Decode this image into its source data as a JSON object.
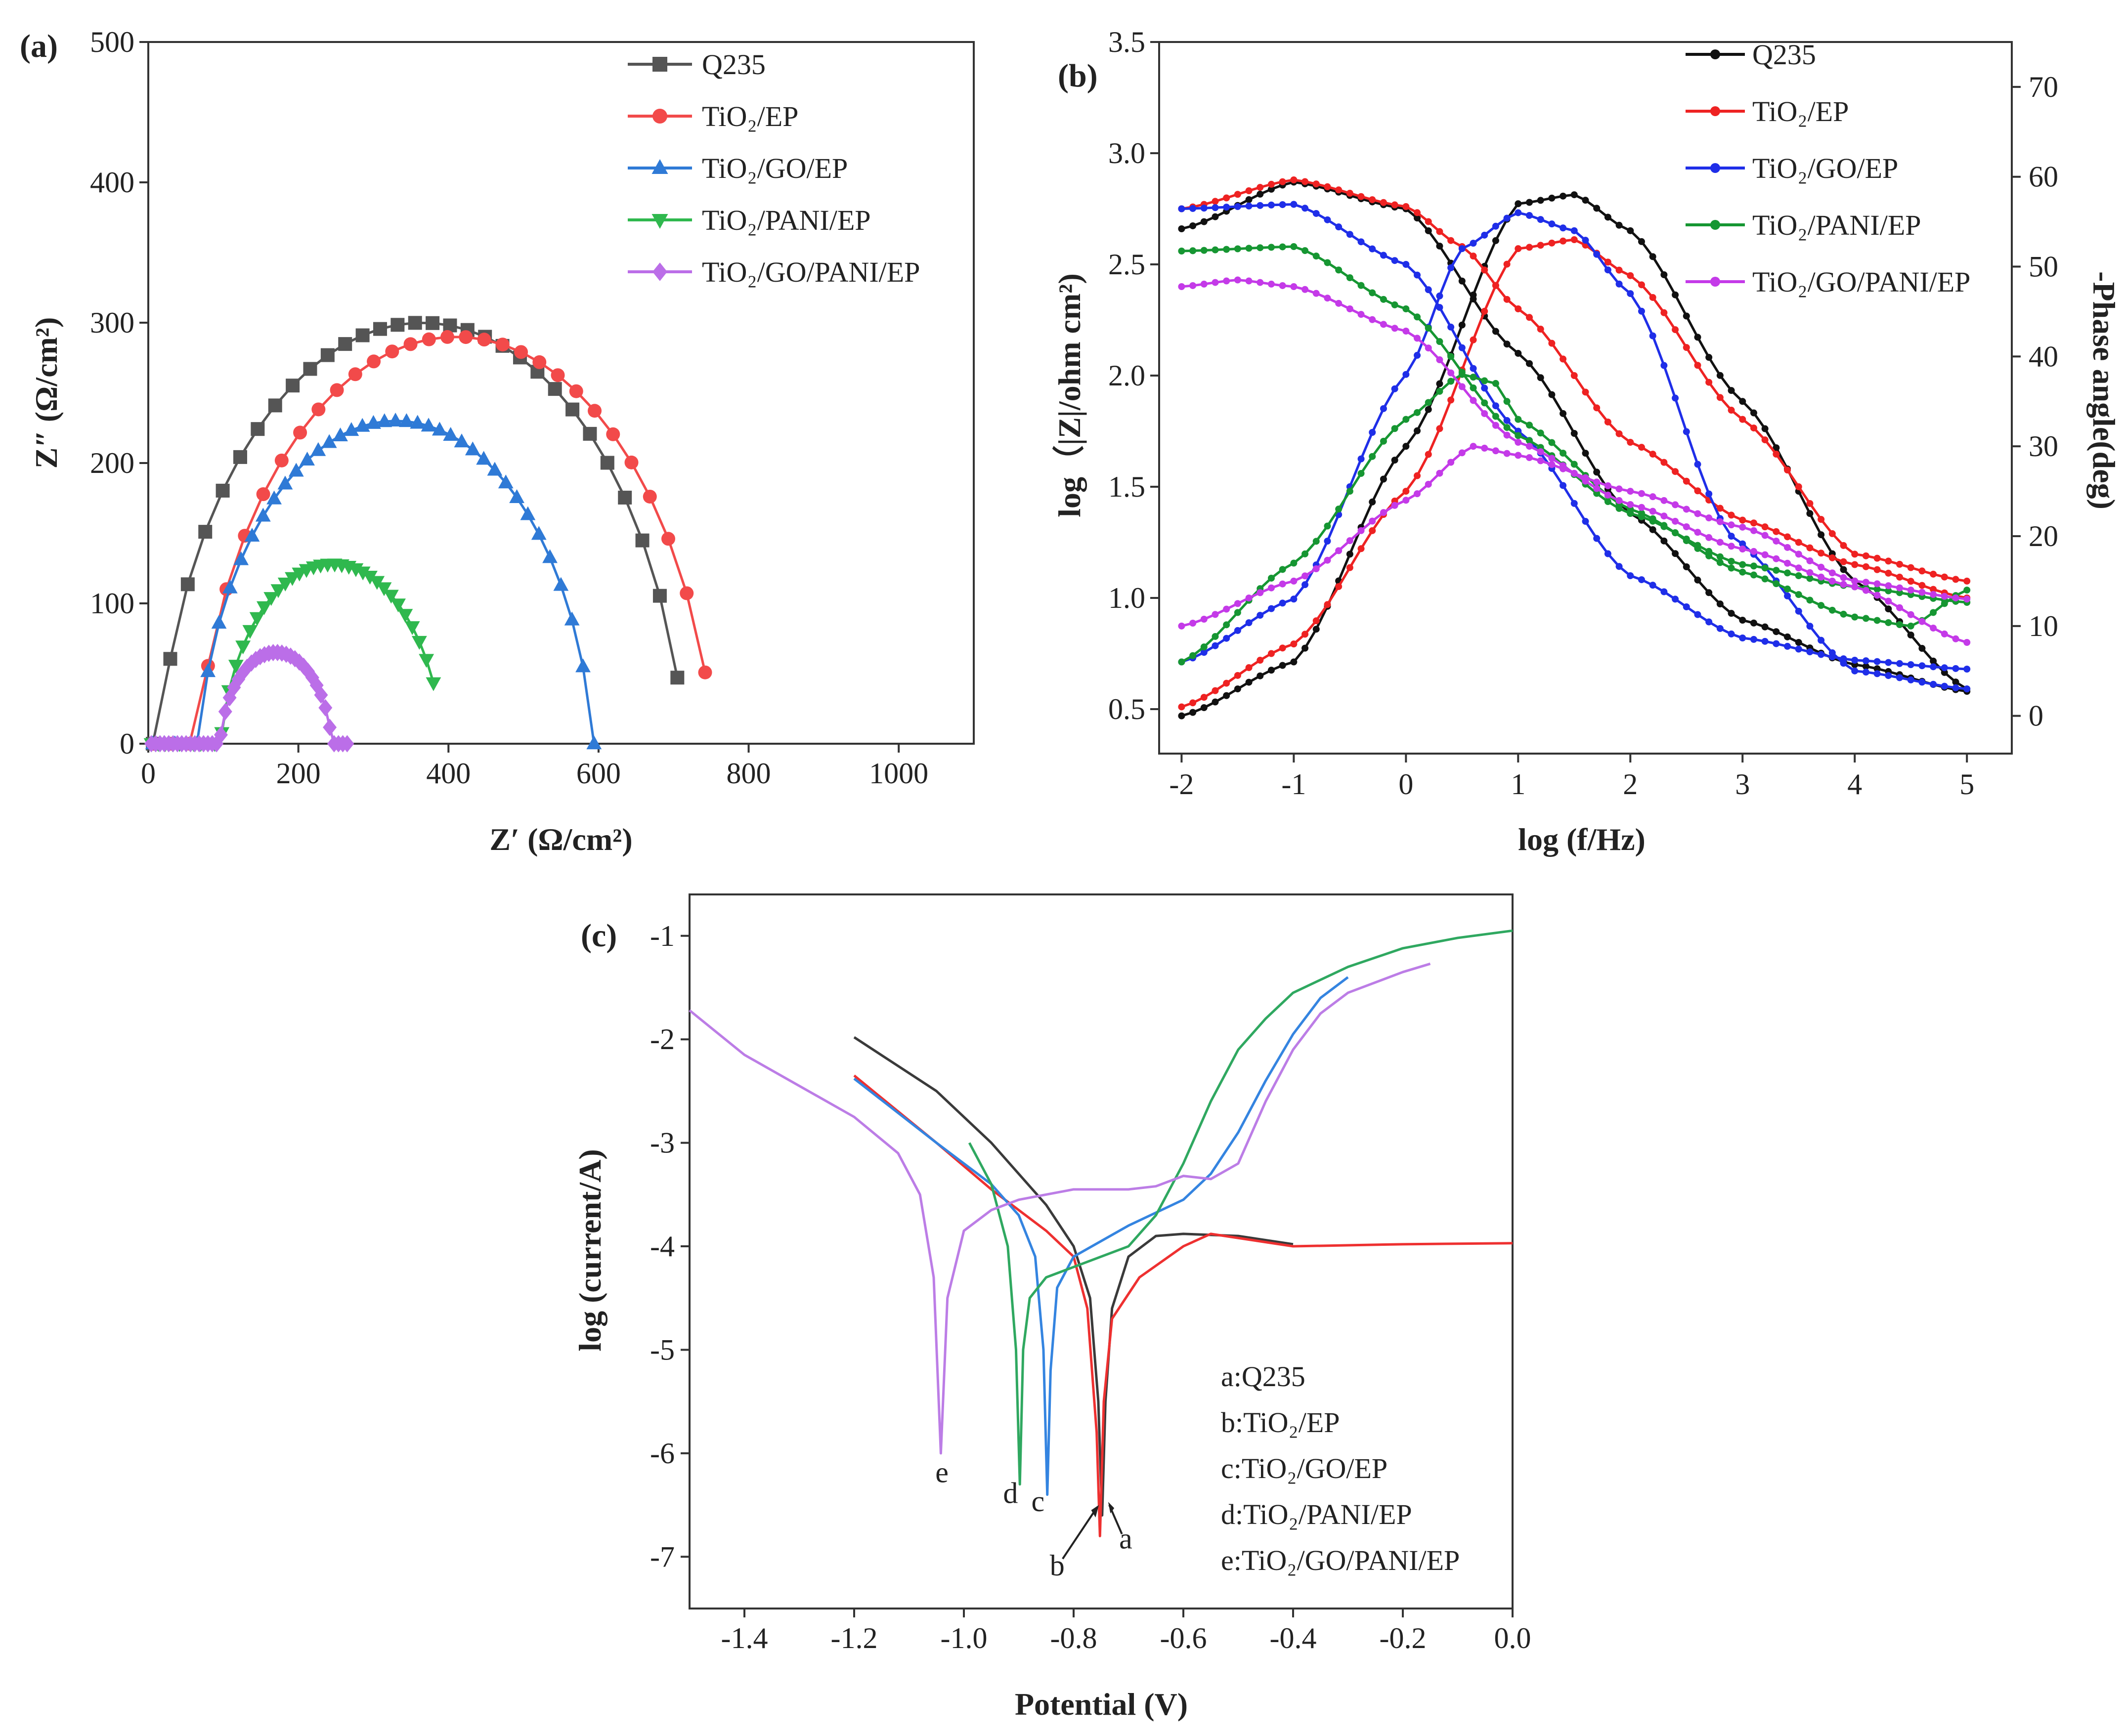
{
  "chart_data": [
    {
      "panel": "(a)",
      "type": "scatter",
      "xlabel": "Z′  (Ω/cm²)",
      "ylabel": "Z″  (Ω/cm²)",
      "xlim": [
        0,
        1100
      ],
      "ylim": [
        0,
        500
      ],
      "xticks": [
        0,
        200,
        400,
        600,
        800,
        1000
      ],
      "yticks": [
        0,
        100,
        200,
        300,
        400,
        500
      ],
      "legend_position": "top-right",
      "series": [
        {
          "name": "Q235",
          "color": "#555555",
          "marker": "square",
          "center": 365,
          "radius": 355,
          "offset": 55,
          "start": 6,
          "end": 705,
          "n": 30
        },
        {
          "name": "TiO₂/EP",
          "color": "#f24a4a",
          "marker": "circle",
          "center": 410,
          "radius": 350,
          "offset": 60,
          "start": 6,
          "end": 742,
          "n": 30
        },
        {
          "name": "TiO₂/GO/EP",
          "color": "#2f7ad6",
          "marker": "triangle-up",
          "center": 330,
          "radius": 265,
          "offset": 35,
          "start": 6,
          "end": 594,
          "n": 40
        },
        {
          "name": "TiO₂/PANI/EP",
          "color": "#2fb84e",
          "marker": "triangle-down",
          "center": 245,
          "radius": 150,
          "offset": 22,
          "start": 4,
          "end": 380,
          "n": 40
        },
        {
          "name": "TiO₂/GO/PANI/EP",
          "color": "#bb6ee8",
          "marker": "diamond",
          "center": 170,
          "radius": 75,
          "offset": 10,
          "start": 4,
          "end": 265,
          "n": 45
        }
      ]
    },
    {
      "panel": "(b)",
      "type": "line",
      "xlabel": "log (f/Hz)",
      "ylabel": "log（|Z|/ohm cm²)",
      "y2label": "-Phase angle(deg)",
      "xlim": [
        -2.2,
        5.4
      ],
      "ylim": [
        0.3,
        3.5
      ],
      "y2lim": [
        -4.2,
        75
      ],
      "xticks": [
        -2,
        -1,
        0,
        1,
        2,
        3,
        4,
        5
      ],
      "yticks": [
        0.5,
        1.0,
        1.5,
        2.0,
        2.5,
        3.0,
        3.5
      ],
      "y2ticks": [
        0,
        10,
        20,
        30,
        40,
        50,
        60,
        70
      ],
      "legend_position": "top-right",
      "series": [
        {
          "name": "Q235",
          "color": "#111111",
          "modulus": [
            [
              -2,
              2.66
            ],
            [
              -1,
              2.87
            ],
            [
              0,
              2.75
            ],
            [
              1,
              2.1
            ],
            [
              2,
              1.38
            ],
            [
              3,
              0.9
            ],
            [
              4,
              0.7
            ],
            [
              5,
              0.58
            ]
          ],
          "phase": [
            [
              -2,
              0
            ],
            [
              -1,
              6
            ],
            [
              0,
              30
            ],
            [
              1,
              57
            ],
            [
              1.5,
              58
            ],
            [
              2,
              54
            ],
            [
              3,
              35
            ],
            [
              4,
              15
            ],
            [
              5,
              3
            ]
          ]
        },
        {
          "name": "TiO₂/EP",
          "color": "#ee2222",
          "modulus": [
            [
              -2,
              2.75
            ],
            [
              -1,
              2.88
            ],
            [
              0,
              2.76
            ],
            [
              0.5,
              2.58
            ],
            [
              1,
              2.3
            ],
            [
              2,
              1.7
            ],
            [
              3,
              1.35
            ],
            [
              4,
              1.15
            ],
            [
              5,
              1.0
            ]
          ],
          "phase": [
            [
              -2,
              1
            ],
            [
              -1,
              8
            ],
            [
              0,
              25
            ],
            [
              1,
              52
            ],
            [
              1.5,
              53
            ],
            [
              2,
              49
            ],
            [
              3,
              33
            ],
            [
              4,
              18
            ],
            [
              5,
              15
            ]
          ]
        },
        {
          "name": "TiO₂/GO/EP",
          "color": "#1f2ee8",
          "modulus": [
            [
              -2,
              2.75
            ],
            [
              -1,
              2.77
            ],
            [
              0,
              2.5
            ],
            [
              1,
              1.75
            ],
            [
              2,
              1.1
            ],
            [
              3,
              0.82
            ],
            [
              4,
              0.72
            ],
            [
              5,
              0.68
            ]
          ],
          "phase": [
            [
              -2,
              6
            ],
            [
              -1,
              13
            ],
            [
              0,
              38
            ],
            [
              0.5,
              52
            ],
            [
              1,
              56
            ],
            [
              1.5,
              54
            ],
            [
              2,
              47
            ],
            [
              2.9,
              20
            ],
            [
              4,
              5
            ],
            [
              5,
              3
            ]
          ]
        },
        {
          "name": "TiO₂/PANI/EP",
          "color": "#169632",
          "modulus": [
            [
              -2,
              2.56
            ],
            [
              -1,
              2.58
            ],
            [
              0,
              2.3
            ],
            [
              1,
              1.73
            ],
            [
              2,
              1.38
            ],
            [
              3,
              1.15
            ],
            [
              4,
              1.05
            ],
            [
              5,
              0.98
            ]
          ],
          "phase": [
            [
              -2,
              6
            ],
            [
              -1,
              17
            ],
            [
              0,
              33
            ],
            [
              0.5,
              38
            ],
            [
              0.8,
              37
            ],
            [
              1,
              33
            ],
            [
              2,
              23
            ],
            [
              3,
              16
            ],
            [
              4,
              11
            ],
            [
              4.5,
              10
            ],
            [
              5,
              14
            ]
          ]
        },
        {
          "name": "TiO₂/GO/PANI/EP",
          "color": "#c43ae8",
          "modulus": [
            [
              -2,
              2.4
            ],
            [
              -1.5,
              2.43
            ],
            [
              -1,
              2.4
            ],
            [
              0,
              2.2
            ],
            [
              1,
              1.7
            ],
            [
              2,
              1.42
            ],
            [
              3,
              1.22
            ],
            [
              4,
              1.05
            ],
            [
              5,
              0.8
            ]
          ],
          "phase": [
            [
              -2,
              10
            ],
            [
              -1,
              15
            ],
            [
              0,
              24
            ],
            [
              0.6,
              30
            ],
            [
              1,
              29
            ],
            [
              2,
              25
            ],
            [
              3,
              21
            ],
            [
              4,
              15
            ],
            [
              5,
              13
            ]
          ]
        }
      ]
    },
    {
      "panel": "(c)",
      "type": "line",
      "xlabel": "Potential (V)",
      "ylabel": "log (current/A)",
      "xlim": [
        -1.5,
        0.0
      ],
      "ylim": [
        -7.5,
        -0.6
      ],
      "xticks": [
        -1.4,
        -1.2,
        -1.0,
        -0.8,
        -0.6,
        -0.4,
        -0.2,
        0.0
      ],
      "xtick_labels": [
        "-1.4",
        "-1.2",
        "-1.0",
        "-0.8",
        "-0.6",
        "-0.4",
        "-0.2",
        "0.0"
      ],
      "yticks": [
        -7,
        -6,
        -5,
        -4,
        -3,
        -2,
        -1
      ],
      "legend_position": "bottom-right",
      "series": [
        {
          "name": "a:Q235",
          "tag": "a",
          "color": "#3a3a3a",
          "points": [
            [
              -1.2,
              -1.98
            ],
            [
              -1.05,
              -2.5
            ],
            [
              -0.95,
              -3.0
            ],
            [
              -0.85,
              -3.6
            ],
            [
              -0.8,
              -4.0
            ],
            [
              -0.77,
              -4.5
            ],
            [
              -0.755,
              -5.5
            ],
            [
              -0.748,
              -6.6
            ],
            [
              -0.742,
              -5.5
            ],
            [
              -0.73,
              -4.6
            ],
            [
              -0.7,
              -4.1
            ],
            [
              -0.65,
              -3.9
            ],
            [
              -0.6,
              -3.88
            ],
            [
              -0.5,
              -3.9
            ],
            [
              -0.4,
              -3.98
            ]
          ]
        },
        {
          "name": "b:TiO₂/EP",
          "tag": "b",
          "color": "#ee3030",
          "points": [
            [
              -1.2,
              -2.35
            ],
            [
              -1.05,
              -3.0
            ],
            [
              -0.95,
              -3.45
            ],
            [
              -0.85,
              -3.85
            ],
            [
              -0.8,
              -4.1
            ],
            [
              -0.775,
              -4.6
            ],
            [
              -0.758,
              -5.8
            ],
            [
              -0.752,
              -6.8
            ],
            [
              -0.745,
              -5.5
            ],
            [
              -0.73,
              -4.7
            ],
            [
              -0.68,
              -4.3
            ],
            [
              -0.6,
              -4.0
            ],
            [
              -0.55,
              -3.88
            ],
            [
              -0.5,
              -3.92
            ],
            [
              -0.4,
              -4.0
            ],
            [
              -0.2,
              -3.98
            ],
            [
              0.0,
              -3.97
            ]
          ]
        },
        {
          "name": "c:TiO₂/GO/EP",
          "tag": "c",
          "color": "#3484e0",
          "points": [
            [
              -1.2,
              -2.38
            ],
            [
              -1.05,
              -3.0
            ],
            [
              -0.95,
              -3.4
            ],
            [
              -0.9,
              -3.7
            ],
            [
              -0.87,
              -4.1
            ],
            [
              -0.855,
              -5.0
            ],
            [
              -0.848,
              -6.4
            ],
            [
              -0.842,
              -5.2
            ],
            [
              -0.83,
              -4.4
            ],
            [
              -0.8,
              -4.1
            ],
            [
              -0.7,
              -3.8
            ],
            [
              -0.6,
              -3.55
            ],
            [
              -0.55,
              -3.3
            ],
            [
              -0.5,
              -2.9
            ],
            [
              -0.45,
              -2.4
            ],
            [
              -0.4,
              -1.95
            ],
            [
              -0.35,
              -1.6
            ],
            [
              -0.3,
              -1.4
            ]
          ]
        },
        {
          "name": "d:TiO₂/PANI/EP",
          "tag": "d",
          "color": "#2fa860",
          "points": [
            [
              -0.99,
              -3.0
            ],
            [
              -0.95,
              -3.4
            ],
            [
              -0.92,
              -4.0
            ],
            [
              -0.905,
              -5.0
            ],
            [
              -0.898,
              -6.3
            ],
            [
              -0.892,
              -5.0
            ],
            [
              -0.88,
              -4.5
            ],
            [
              -0.85,
              -4.3
            ],
            [
              -0.8,
              -4.2
            ],
            [
              -0.7,
              -4.0
            ],
            [
              -0.65,
              -3.7
            ],
            [
              -0.6,
              -3.2
            ],
            [
              -0.55,
              -2.6
            ],
            [
              -0.5,
              -2.1
            ],
            [
              -0.45,
              -1.8
            ],
            [
              -0.4,
              -1.55
            ],
            [
              -0.3,
              -1.3
            ],
            [
              -0.2,
              -1.12
            ],
            [
              -0.1,
              -1.02
            ],
            [
              0.0,
              -0.95
            ]
          ]
        },
        {
          "name": "e:TiO₂/GO/PANI/EP",
          "tag": "e",
          "color": "#bc7de6",
          "points": [
            [
              -1.5,
              -1.72
            ],
            [
              -1.4,
              -2.15
            ],
            [
              -1.3,
              -2.45
            ],
            [
              -1.2,
              -2.75
            ],
            [
              -1.12,
              -3.1
            ],
            [
              -1.08,
              -3.5
            ],
            [
              -1.055,
              -4.3
            ],
            [
              -1.042,
              -6.0
            ],
            [
              -1.03,
              -4.5
            ],
            [
              -1.0,
              -3.85
            ],
            [
              -0.95,
              -3.65
            ],
            [
              -0.9,
              -3.55
            ],
            [
              -0.8,
              -3.45
            ],
            [
              -0.7,
              -3.45
            ],
            [
              -0.65,
              -3.42
            ],
            [
              -0.6,
              -3.32
            ],
            [
              -0.55,
              -3.35
            ],
            [
              -0.5,
              -3.2
            ],
            [
              -0.45,
              -2.6
            ],
            [
              -0.4,
              -2.1
            ],
            [
              -0.35,
              -1.75
            ],
            [
              -0.3,
              -1.55
            ],
            [
              -0.2,
              -1.35
            ],
            [
              -0.15,
              -1.27
            ]
          ]
        }
      ],
      "annotations": [
        {
          "text": "e",
          "x": -1.04,
          "y": -6.28
        },
        {
          "text": "d",
          "x": -0.915,
          "y": -6.48
        },
        {
          "text": "c",
          "x": -0.865,
          "y": -6.56
        },
        {
          "text": "a",
          "x": -0.705,
          "y": -6.92
        },
        {
          "text": "b",
          "x": -0.83,
          "y": -7.18
        }
      ]
    }
  ]
}
